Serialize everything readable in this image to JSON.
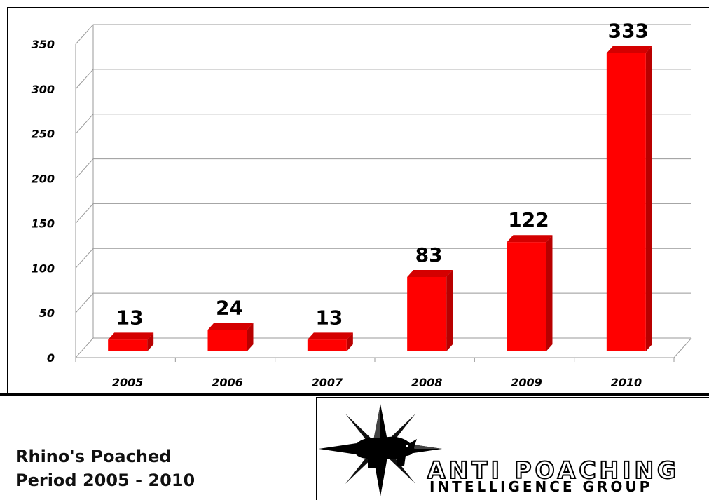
{
  "chart_data": {
    "type": "bar",
    "categories": [
      "2005",
      "2006",
      "2007",
      "2008",
      "2009",
      "2010"
    ],
    "values": [
      13,
      24,
      13,
      83,
      122,
      333
    ],
    "data_labels": [
      "13",
      "24",
      "13",
      "83",
      "122",
      "333"
    ],
    "yticks": [
      "0",
      "50",
      "100",
      "150",
      "200",
      "250",
      "300",
      "350"
    ],
    "ylim": [
      0,
      350
    ],
    "grid": true,
    "bar_color": "#ff0000",
    "bar_side_color": "#b80000",
    "bar_top_color": "#d40000",
    "three_d": true
  },
  "caption": {
    "line1": "Rhino's Poached",
    "line2": "Period 2005 - 2010"
  },
  "logo": {
    "line1": "ANTI POACHING",
    "line2": "INTELLIGENCE GROUP",
    "icon": "compass-star-rhino-icon"
  }
}
